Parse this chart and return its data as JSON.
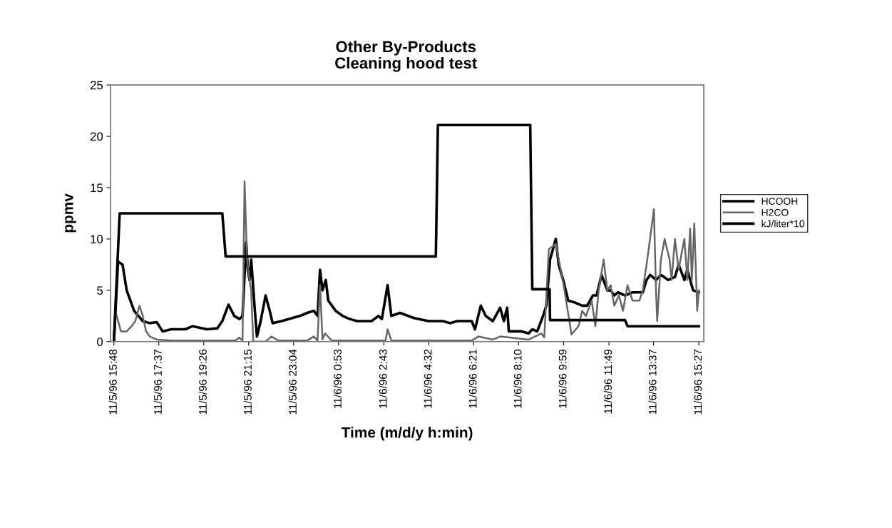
{
  "chart_data": {
    "type": "line",
    "title": "Other By-Products",
    "subtitle": "Cleaning hood test",
    "xlabel": "Time (m/d/y h:min)",
    "ylabel": "ppmv",
    "xlim": [
      "1996-11-05T15:40",
      "1996-11-06T15:39"
    ],
    "xticks": [
      {
        "value": "1996-11-05T15:48",
        "label": "11/5/96 15:48"
      },
      {
        "value": "1996-11-05T17:37",
        "label": "11/5/96 17:37"
      },
      {
        "value": "1996-11-05T19:26",
        "label": "11/5/96 19:26"
      },
      {
        "value": "1996-11-05T21:15",
        "label": "11/5/96 21:15"
      },
      {
        "value": "1996-11-05T23:04",
        "label": "11/5/96 23:04"
      },
      {
        "value": "1996-11-06T00:53",
        "label": "11/6/96 0:53"
      },
      {
        "value": "1996-11-06T02:43",
        "label": "11/6/96 2:43"
      },
      {
        "value": "1996-11-06T04:32",
        "label": "11/6/96 4:32"
      },
      {
        "value": "1996-11-06T06:21",
        "label": "11/6/96 6:21"
      },
      {
        "value": "1996-11-06T08:10",
        "label": "11/6/96 8:10"
      },
      {
        "value": "1996-11-06T09:59",
        "label": "11/6/96 9:59"
      },
      {
        "value": "1996-11-06T11:49",
        "label": "11/6/96 11:49"
      },
      {
        "value": "1996-11-06T13:37",
        "label": "11/6/96 13:37"
      },
      {
        "value": "1996-11-06T15:27",
        "label": "11/6/96 15:27"
      }
    ],
    "ylim": [
      0,
      25
    ],
    "yticks": [
      0,
      5,
      10,
      15,
      20,
      25
    ],
    "grid": false,
    "legend": "right",
    "marker": "none",
    "line_style": "solid",
    "series": [
      {
        "name": "HCOOH",
        "color": "#000000",
        "x": [
          "1996-11-05T15:48",
          "1996-11-05T15:58",
          "1996-11-05T16:09",
          "1996-11-05T16:19",
          "1996-11-05T16:37",
          "1996-11-05T16:58",
          "1996-11-05T17:15",
          "1996-11-05T17:32",
          "1996-11-05T17:46",
          "1996-11-05T18:07",
          "1996-11-05T18:41",
          "1996-11-05T18:59",
          "1996-11-05T19:34",
          "1996-11-05T19:59",
          "1996-11-05T20:11",
          "1996-11-05T20:26",
          "1996-11-05T20:40",
          "1996-11-05T20:53",
          "1996-11-05T21:00",
          "1996-11-05T21:09",
          "1996-11-05T21:13",
          "1996-11-05T21:17",
          "1996-11-05T21:21",
          "1996-11-05T21:30",
          "1996-11-05T21:35",
          "1996-11-05T21:44",
          "1996-11-05T21:56",
          "1996-11-05T22:06",
          "1996-11-05T22:13",
          "1996-11-05T22:35",
          "1996-11-05T23:19",
          "1996-11-05T23:37",
          "1996-11-05T23:53",
          "1996-11-06T00:02",
          "1996-11-06T00:08",
          "1996-11-06T00:14",
          "1996-11-06T00:22",
          "1996-11-06T00:28",
          "1996-11-06T00:46",
          "1996-11-06T01:03",
          "1996-11-06T01:20",
          "1996-11-06T01:38",
          "1996-11-06T02:13",
          "1996-11-06T02:30",
          "1996-11-06T02:38",
          "1996-11-06T02:52",
          "1996-11-06T03:01",
          "1996-11-06T03:22",
          "1996-11-06T03:56",
          "1996-11-06T04:31",
          "1996-11-06T05:06",
          "1996-11-06T05:23",
          "1996-11-06T05:41",
          "1996-11-06T06:16",
          "1996-11-06T06:24",
          "1996-11-06T06:38",
          "1996-11-06T06:50",
          "1996-11-06T07:07",
          "1996-11-06T07:25",
          "1996-11-06T07:34",
          "1996-11-06T07:42",
          "1996-11-06T07:46",
          "1996-11-06T08:17",
          "1996-11-06T08:34",
          "1996-11-06T08:43",
          "1996-11-06T08:55",
          "1996-11-06T09:09",
          "1996-11-06T09:17",
          "1996-11-06T09:26",
          "1996-11-06T09:40",
          "1996-11-06T09:47",
          "1996-11-06T09:58",
          "1996-11-06T10:10",
          "1996-11-06T10:27",
          "1996-11-06T10:44",
          "1996-11-06T10:56",
          "1996-11-06T11:10",
          "1996-11-06T11:19",
          "1996-11-06T11:31",
          "1996-11-06T11:45",
          "1996-11-06T11:53",
          "1996-11-06T12:02",
          "1996-11-06T12:11",
          "1996-11-06T12:28",
          "1996-11-06T12:46",
          "1996-11-06T13:11",
          "1996-11-06T13:20",
          "1996-11-06T13:29",
          "1996-11-06T13:43",
          "1996-11-06T13:55",
          "1996-11-06T14:13",
          "1996-11-06T14:29",
          "1996-11-06T14:38",
          "1996-11-06T14:52",
          "1996-11-06T14:59",
          "1996-11-06T15:13",
          "1996-11-06T15:27"
        ],
        "values": [
          0,
          7.8,
          7.5,
          5,
          3,
          2,
          1.8,
          1.9,
          1.0,
          1.2,
          1.2,
          1.5,
          1.2,
          1.3,
          2.0,
          3.6,
          2.5,
          2.2,
          2.5,
          9.7,
          7,
          6,
          8,
          3,
          0.5,
          2,
          4.5,
          3,
          1.8,
          2,
          2.5,
          2.8,
          3,
          2.5,
          7,
          5,
          6,
          4,
          3,
          2.5,
          2.2,
          2,
          2,
          2.5,
          2.2,
          5.5,
          2.5,
          2.8,
          2.3,
          2,
          2,
          1.8,
          2,
          2,
          1.2,
          3.5,
          2.5,
          2,
          3.3,
          2,
          3.3,
          1,
          1,
          0.8,
          1.2,
          1,
          2.5,
          3.5,
          8,
          10,
          7.5,
          6,
          4,
          3.8,
          3.5,
          3.5,
          4.5,
          4.5,
          6.5,
          5,
          5,
          4.5,
          4.8,
          4.5,
          4.8,
          4.8,
          6,
          6.5,
          6,
          6.5,
          6,
          6.3,
          7.5,
          6,
          7,
          5,
          4.8
        ]
      },
      {
        "name": "H2CO",
        "color": "#666666",
        "x": [
          "1996-11-05T15:48",
          "1996-11-05T15:53",
          "1996-11-05T16:05",
          "1996-11-05T16:19",
          "1996-11-05T16:31",
          "1996-11-05T16:40",
          "1996-11-05T16:50",
          "1996-11-05T16:58",
          "1996-11-05T17:06",
          "1996-11-05T17:15",
          "1996-11-05T17:32",
          "1996-11-05T18:07",
          "1996-11-05T20:43",
          "1996-11-05T20:52",
          "1996-11-05T21:00",
          "1996-11-05T21:05",
          "1996-11-05T21:11",
          "1996-11-05T21:17",
          "1996-11-05T21:21",
          "1996-11-05T21:26",
          "1996-11-05T21:56",
          "1996-11-05T22:10",
          "1996-11-05T22:27",
          "1996-11-05T23:37",
          "1996-11-05T23:53",
          "1996-11-06T00:02",
          "1996-11-06T00:08",
          "1996-11-06T00:14",
          "1996-11-06T00:20",
          "1996-11-06T00:37",
          "1996-11-06T02:47",
          "1996-11-06T02:52",
          "1996-11-06T03:01",
          "1996-11-06T06:16",
          "1996-11-06T06:32",
          "1996-11-06T07:07",
          "1996-11-06T07:25",
          "1996-11-06T08:34",
          "1996-11-06T09:05",
          "1996-11-06T09:12",
          "1996-11-06T09:23",
          "1996-11-06T09:40",
          "1996-11-06T09:52",
          "1996-11-06T10:01",
          "1996-11-06T10:13",
          "1996-11-06T10:18",
          "1996-11-06T10:35",
          "1996-11-06T10:44",
          "1996-11-06T10:53",
          "1996-11-06T11:07",
          "1996-11-06T11:16",
          "1996-11-06T11:24",
          "1996-11-06T11:36",
          "1996-11-06T11:45",
          "1996-11-06T11:53",
          "1996-11-06T12:02",
          "1996-11-06T12:13",
          "1996-11-06T12:23",
          "1996-11-06T12:34",
          "1996-11-06T12:46",
          "1996-11-06T13:03",
          "1996-11-06T13:11",
          "1996-11-06T13:22",
          "1996-11-06T13:38",
          "1996-11-06T13:43",
          "1996-11-06T13:46",
          "1996-11-06T13:55",
          "1996-11-06T14:04",
          "1996-11-06T14:16",
          "1996-11-06T14:21",
          "1996-11-06T14:29",
          "1996-11-06T14:38",
          "1996-11-06T14:47",
          "1996-11-06T14:52",
          "1996-11-06T14:59",
          "1996-11-06T15:06",
          "1996-11-06T15:10",
          "1996-11-06T15:16",
          "1996-11-06T15:23",
          "1996-11-06T15:27"
        ],
        "values": [
          0,
          2.8,
          1.0,
          1.0,
          1.5,
          2.0,
          3.5,
          2.5,
          1.0,
          0.5,
          0.2,
          0.1,
          0.1,
          0.4,
          0.1,
          15.6,
          8,
          6,
          5,
          0,
          0,
          0.5,
          0.1,
          0.1,
          0.5,
          0.1,
          5.5,
          0.2,
          0.8,
          0.1,
          0.1,
          1.2,
          0.1,
          0.1,
          0.5,
          0.2,
          0.5,
          0.2,
          0.8,
          0.4,
          9,
          9.5,
          7,
          5,
          2,
          0.7,
          1.5,
          3,
          2.5,
          4,
          1.5,
          5,
          8,
          5,
          5.5,
          3.5,
          4.5,
          3,
          5.5,
          4,
          4,
          5,
          8,
          12.9,
          5,
          2,
          8,
          10,
          8,
          6,
          10,
          7,
          9,
          10,
          6,
          11,
          6,
          11.5,
          3,
          5
        ]
      },
      {
        "name": "kJ/liter*10",
        "color": "#000000",
        "x": [
          "1996-11-05T15:48",
          "1996-11-05T16:02",
          "1996-11-05T20:11",
          "1996-11-05T20:19",
          "1996-11-06T04:49",
          "1996-11-06T04:54",
          "1996-11-06T08:38",
          "1996-11-06T08:43",
          "1996-11-06T09:25",
          "1996-11-06T09:26",
          "1996-11-06T12:28",
          "1996-11-06T12:34",
          "1996-11-06T15:27"
        ],
        "values": [
          0,
          12.5,
          12.5,
          8.3,
          8.3,
          21.1,
          21.1,
          5.1,
          5.1,
          2.1,
          2.1,
          1.5,
          1.5
        ]
      }
    ]
  }
}
